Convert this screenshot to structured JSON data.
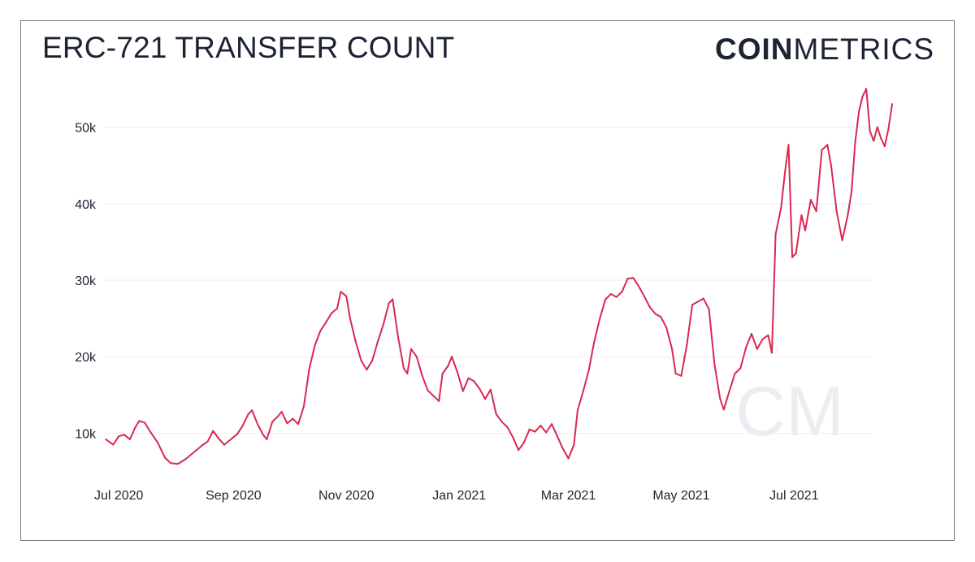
{
  "title": "ERC-721 TRANSFER COUNT",
  "brand": {
    "bold": "COIN",
    "light": "METRICS"
  },
  "watermark": "CM",
  "colors": {
    "line": "#d92850",
    "grid": "#eeeeee",
    "text": "#1c2333",
    "watermark": "#eaeef3"
  },
  "chart_data": {
    "type": "line",
    "title": "ERC-721 TRANSFER COUNT",
    "xlabel": "",
    "ylabel": "",
    "ylim": [
      4000,
      56000
    ],
    "xlim": [
      "2020-06-23",
      "2021-08-12"
    ],
    "yticks": [
      10000,
      20000,
      30000,
      40000,
      50000
    ],
    "ytick_labels": [
      "10k",
      "20k",
      "30k",
      "40k",
      "50k"
    ],
    "xticks": [
      "2020-07-01",
      "2020-09-01",
      "2020-11-01",
      "2021-01-01",
      "2021-03-01",
      "2021-05-01",
      "2021-07-01"
    ],
    "xtick_labels": [
      "Jul 2020",
      "Sep 2020",
      "Nov 2020",
      "Jan 2021",
      "Mar 2021",
      "May 2021",
      "Jul 2021"
    ],
    "grid": true,
    "series": [
      {
        "color": "#d92850",
        "points": [
          [
            "2020-06-24",
            9200
          ],
          [
            "2020-06-28",
            8500
          ],
          [
            "2020-07-01",
            9600
          ],
          [
            "2020-07-04",
            9800
          ],
          [
            "2020-07-07",
            9200
          ],
          [
            "2020-07-10",
            10800
          ],
          [
            "2020-07-12",
            11600
          ],
          [
            "2020-07-15",
            11400
          ],
          [
            "2020-07-18",
            10200
          ],
          [
            "2020-07-22",
            8800
          ],
          [
            "2020-07-26",
            6800
          ],
          [
            "2020-07-29",
            6100
          ],
          [
            "2020-08-02",
            6000
          ],
          [
            "2020-08-06",
            6600
          ],
          [
            "2020-08-10",
            7400
          ],
          [
            "2020-08-15",
            8400
          ],
          [
            "2020-08-18",
            8900
          ],
          [
            "2020-08-21",
            10300
          ],
          [
            "2020-08-24",
            9300
          ],
          [
            "2020-08-27",
            8500
          ],
          [
            "2020-08-31",
            9300
          ],
          [
            "2020-09-03",
            9900
          ],
          [
            "2020-09-06",
            11000
          ],
          [
            "2020-09-09",
            12500
          ],
          [
            "2020-09-11",
            13000
          ],
          [
            "2020-09-14",
            11200
          ],
          [
            "2020-09-17",
            9800
          ],
          [
            "2020-09-19",
            9200
          ],
          [
            "2020-09-22",
            11500
          ],
          [
            "2020-09-25",
            12200
          ],
          [
            "2020-09-27",
            12800
          ],
          [
            "2020-09-30",
            11300
          ],
          [
            "2020-10-03",
            11900
          ],
          [
            "2020-10-06",
            11200
          ],
          [
            "2020-10-09",
            13500
          ],
          [
            "2020-10-12",
            18500
          ],
          [
            "2020-10-15",
            21500
          ],
          [
            "2020-10-18",
            23400
          ],
          [
            "2020-10-21",
            24500
          ],
          [
            "2020-10-24",
            25700
          ],
          [
            "2020-10-27",
            26300
          ],
          [
            "2020-10-29",
            28500
          ],
          [
            "2020-11-01",
            27900
          ],
          [
            "2020-11-03",
            25000
          ],
          [
            "2020-11-06",
            22000
          ],
          [
            "2020-11-09",
            19500
          ],
          [
            "2020-11-12",
            18300
          ],
          [
            "2020-11-15",
            19500
          ],
          [
            "2020-11-18",
            22000
          ],
          [
            "2020-11-21",
            24200
          ],
          [
            "2020-11-24",
            27000
          ],
          [
            "2020-11-26",
            27500
          ],
          [
            "2020-11-29",
            22500
          ],
          [
            "2020-12-02",
            18500
          ],
          [
            "2020-12-04",
            17800
          ],
          [
            "2020-12-06",
            21000
          ],
          [
            "2020-12-09",
            20000
          ],
          [
            "2020-12-12",
            17500
          ],
          [
            "2020-12-15",
            15600
          ],
          [
            "2020-12-18",
            14900
          ],
          [
            "2020-12-21",
            14200
          ],
          [
            "2020-12-23",
            17800
          ],
          [
            "2020-12-26",
            18800
          ],
          [
            "2020-12-28",
            20000
          ],
          [
            "2020-12-31",
            18000
          ],
          [
            "2021-01-03",
            15500
          ],
          [
            "2021-01-06",
            17200
          ],
          [
            "2021-01-09",
            16800
          ],
          [
            "2021-01-12",
            15800
          ],
          [
            "2021-01-15",
            14500
          ],
          [
            "2021-01-18",
            15700
          ],
          [
            "2021-01-21",
            12500
          ],
          [
            "2021-01-24",
            11500
          ],
          [
            "2021-01-27",
            10800
          ],
          [
            "2021-01-30",
            9500
          ],
          [
            "2021-02-02",
            7800
          ],
          [
            "2021-02-05",
            8800
          ],
          [
            "2021-02-08",
            10500
          ],
          [
            "2021-02-11",
            10200
          ],
          [
            "2021-02-14",
            11000
          ],
          [
            "2021-02-17",
            10100
          ],
          [
            "2021-02-20",
            11200
          ],
          [
            "2021-02-23",
            9600
          ],
          [
            "2021-02-26",
            8000
          ],
          [
            "2021-03-01",
            6700
          ],
          [
            "2021-03-04",
            8500
          ],
          [
            "2021-03-06",
            13000
          ],
          [
            "2021-03-09",
            15500
          ],
          [
            "2021-03-12",
            18200
          ],
          [
            "2021-03-15",
            22000
          ],
          [
            "2021-03-18",
            25000
          ],
          [
            "2021-03-21",
            27500
          ],
          [
            "2021-03-24",
            28200
          ],
          [
            "2021-03-27",
            27800
          ],
          [
            "2021-03-30",
            28500
          ],
          [
            "2021-04-02",
            30200
          ],
          [
            "2021-04-05",
            30300
          ],
          [
            "2021-04-08",
            29200
          ],
          [
            "2021-04-11",
            27900
          ],
          [
            "2021-04-14",
            26500
          ],
          [
            "2021-04-17",
            25600
          ],
          [
            "2021-04-20",
            25200
          ],
          [
            "2021-04-23",
            23800
          ],
          [
            "2021-04-26",
            21000
          ],
          [
            "2021-04-28",
            17800
          ],
          [
            "2021-05-01",
            17500
          ],
          [
            "2021-05-04",
            21500
          ],
          [
            "2021-05-07",
            26800
          ],
          [
            "2021-05-10",
            27200
          ],
          [
            "2021-05-13",
            27600
          ],
          [
            "2021-05-16",
            26200
          ],
          [
            "2021-05-19",
            19000
          ],
          [
            "2021-05-22",
            14500
          ],
          [
            "2021-05-24",
            13100
          ],
          [
            "2021-05-27",
            15500
          ],
          [
            "2021-05-30",
            17800
          ],
          [
            "2021-06-02",
            18500
          ],
          [
            "2021-06-05",
            21200
          ],
          [
            "2021-06-08",
            23000
          ],
          [
            "2021-06-11",
            21000
          ],
          [
            "2021-06-14",
            22300
          ],
          [
            "2021-06-17",
            22800
          ],
          [
            "2021-06-19",
            20500
          ],
          [
            "2021-06-21",
            36000
          ],
          [
            "2021-06-24",
            39500
          ],
          [
            "2021-06-26",
            44000
          ],
          [
            "2021-06-28",
            47700
          ],
          [
            "2021-06-30",
            33000
          ],
          [
            "2021-07-02",
            33500
          ],
          [
            "2021-07-05",
            38500
          ],
          [
            "2021-07-07",
            36500
          ],
          [
            "2021-07-10",
            40500
          ],
          [
            "2021-07-13",
            39000
          ],
          [
            "2021-07-16",
            47000
          ],
          [
            "2021-07-19",
            47700
          ],
          [
            "2021-07-21",
            45000
          ],
          [
            "2021-07-24",
            39000
          ],
          [
            "2021-07-27",
            35200
          ],
          [
            "2021-07-30",
            38500
          ],
          [
            "2021-08-01",
            41500
          ],
          [
            "2021-08-03",
            48000
          ],
          [
            "2021-08-05",
            52000
          ],
          [
            "2021-08-07",
            54000
          ],
          [
            "2021-08-09",
            55000
          ],
          [
            "2021-08-11",
            49500
          ],
          [
            "2021-08-13",
            48200
          ],
          [
            "2021-08-15",
            50000
          ],
          [
            "2021-08-17",
            48500
          ],
          [
            "2021-08-19",
            47500
          ],
          [
            "2021-08-21",
            49800
          ],
          [
            "2021-08-23",
            53000
          ]
        ]
      }
    ]
  }
}
